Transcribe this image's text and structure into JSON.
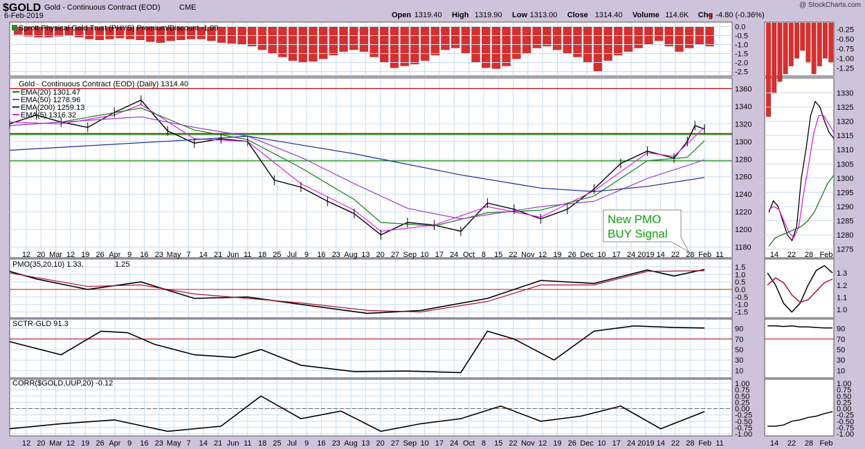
{
  "header": {
    "symbol": "$GOLD",
    "name": "Gold - Continuous Contract (EOD)",
    "exchange": "CME",
    "date": "6-Feb-2019",
    "watermark": "@ StockCharts.com",
    "ohlc": [
      {
        "k": "Open",
        "v": "1319.40"
      },
      {
        "k": "High",
        "v": "1319.90"
      },
      {
        "k": "Low",
        "v": "1313.00"
      },
      {
        "k": "Close",
        "v": "1314.40"
      },
      {
        "k": "Volume",
        "v": "114.6K"
      },
      {
        "k": "Chg",
        "v": "-4.80 (-0.36%)"
      }
    ]
  },
  "colors": {
    "background": "#cfc3dc",
    "panel": "#ffffff",
    "grid": "#c8dcec",
    "bars": "#d43030",
    "price": "#000000",
    "ema20": "#1a7a1a",
    "ema50": "#9a40d0",
    "ema200": "#1a2a9a",
    "ema5": "#e020e0",
    "pmo_signal": "#b01030",
    "hline_red": "#c01818",
    "hline_green": "#189018",
    "annotation": "#10a010"
  },
  "annotation": {
    "line1": "New PMO",
    "line2": "BUY Signal"
  },
  "chart_data": [
    {
      "panel": "premium",
      "type": "bar",
      "title": "Sprott Physical Gold Trust (PHYS) Premium/Discount -1.09",
      "ylim": [
        -2.75,
        0.25
      ],
      "yticks": [
        "0.0",
        "-0.5",
        "-1.0",
        "-1.5",
        "-2.0",
        "-2.5"
      ],
      "yticks_zoom": [
        "-0.25",
        "-0.50",
        "-0.75",
        "-1.00",
        "-1.25"
      ],
      "values": [
        -0.45,
        -0.55,
        -0.6,
        -0.6,
        -0.55,
        -0.5,
        -0.6,
        -0.7,
        -0.75,
        -0.7,
        -0.65,
        -0.7,
        -0.75,
        -0.85,
        -0.9,
        -0.8,
        -0.75,
        -0.7,
        -0.7,
        -0.8,
        -0.9,
        -0.95,
        -1.0,
        -1.1,
        -1.3,
        -1.5,
        -1.7,
        -1.9,
        -2.0,
        -1.95,
        -1.8,
        -1.6,
        -1.4,
        -1.3,
        -1.4,
        -1.7,
        -2.0,
        -2.3,
        -2.2,
        -2.1,
        -1.9,
        -1.6,
        -1.3,
        -1.2,
        -1.5,
        -2.0,
        -2.3,
        -2.35,
        -2.2,
        -1.8,
        -1.5,
        -1.2,
        -1.1,
        -1.3,
        -1.5,
        -1.7,
        -2.0,
        -2.5,
        -1.9,
        -1.6,
        -1.4,
        -1.2,
        -1.0,
        -0.8,
        -1.1,
        -1.4,
        -1.2,
        -1.0,
        -1.1
      ]
    },
    {
      "panel": "price",
      "type": "line",
      "title": "Gold - Continuous Contract (EOD) (Daily) 1314.40",
      "legend": [
        {
          "name": "EMA(20) 1301.47",
          "color": "#1a7a1a"
        },
        {
          "name": "EMA(50) 1278.96",
          "color": "#9a40d0"
        },
        {
          "name": "EMA(200) 1259.13",
          "color": "#1a2a9a"
        },
        {
          "name": "EMA(5) 1316.32",
          "color": "#e020e0"
        }
      ],
      "ylim": [
        1168,
        1372
      ],
      "yticks": [
        1180,
        1200,
        1220,
        1240,
        1260,
        1280,
        1300,
        1320,
        1340,
        1360
      ],
      "zoom_ylim": [
        1272,
        1334
      ],
      "zoom_yticks": [
        1275,
        1280,
        1285,
        1290,
        1295,
        1300,
        1305,
        1310,
        1315,
        1320,
        1325,
        1330
      ],
      "hlines": [
        {
          "y": 1360,
          "color": "#c01818"
        },
        {
          "y": 1309,
          "color": "#c01818"
        },
        {
          "y": 1309,
          "color": "#189018"
        },
        {
          "y": 1278,
          "color": "#189018"
        }
      ],
      "x_start": "2018-02-06",
      "x_end": "2019-02-06",
      "x_labels": [
        "12",
        "20",
        "Mar",
        "12",
        "19",
        "26",
        "Apr",
        "9",
        "16",
        "23",
        "May",
        "7",
        "14",
        "21",
        "Jun",
        "11",
        "18",
        "25",
        "Jul",
        "9",
        "16",
        "23",
        "Aug",
        "13",
        "20",
        "27",
        "Sep",
        "10",
        "17",
        "24",
        "Oct",
        "8",
        "15",
        "22",
        "Nov",
        "12",
        "19",
        "26",
        "Dec",
        "10",
        "17",
        "24",
        "2019",
        "14",
        "22",
        "28",
        "Feb",
        "11"
      ],
      "zoom_x_labels": [
        "14",
        "22",
        "28",
        "Feb"
      ],
      "series": [
        {
          "id": "close",
          "dates": [
            "2018-02-06",
            "2018-02-20",
            "2018-03-05",
            "2018-03-19",
            "2018-04-02",
            "2018-04-16",
            "2018-04-30",
            "2018-05-14",
            "2018-05-28",
            "2018-06-11",
            "2018-06-25",
            "2018-07-09",
            "2018-07-23",
            "2018-08-06",
            "2018-08-20",
            "2018-09-03",
            "2018-09-17",
            "2018-10-01",
            "2018-10-15",
            "2018-10-29",
            "2018-11-12",
            "2018-11-26",
            "2018-12-10",
            "2018-12-24",
            "2019-01-07",
            "2019-01-21",
            "2019-01-28",
            "2019-02-01",
            "2019-02-06"
          ],
          "values": [
            1320,
            1330,
            1322,
            1316,
            1333,
            1347,
            1312,
            1298,
            1303,
            1300,
            1256,
            1248,
            1232,
            1218,
            1194,
            1208,
            1205,
            1198,
            1230,
            1223,
            1212,
            1223,
            1246,
            1275,
            1289,
            1281,
            1300,
            1318,
            1314
          ]
        },
        {
          "id": "ema5",
          "dates": [
            "2018-02-06",
            "2018-03-05",
            "2018-04-02",
            "2018-04-16",
            "2018-05-14",
            "2018-06-11",
            "2018-07-09",
            "2018-08-06",
            "2018-08-20",
            "2018-09-17",
            "2018-10-15",
            "2018-11-12",
            "2018-12-10",
            "2019-01-07",
            "2019-01-21",
            "2019-02-06"
          ],
          "values": [
            1322,
            1320,
            1330,
            1342,
            1303,
            1300,
            1252,
            1222,
            1198,
            1205,
            1226,
            1214,
            1244,
            1287,
            1283,
            1316
          ]
        },
        {
          "id": "ema20",
          "dates": [
            "2018-02-06",
            "2018-03-05",
            "2018-04-16",
            "2018-05-14",
            "2018-06-11",
            "2018-07-09",
            "2018-08-06",
            "2018-08-20",
            "2018-09-17",
            "2018-10-15",
            "2018-11-12",
            "2018-12-10",
            "2019-01-07",
            "2019-01-28",
            "2019-02-06"
          ],
          "values": [
            1318,
            1322,
            1338,
            1313,
            1302,
            1270,
            1234,
            1208,
            1204,
            1219,
            1222,
            1238,
            1278,
            1282,
            1301
          ]
        },
        {
          "id": "ema50",
          "dates": [
            "2018-02-06",
            "2018-04-16",
            "2018-05-14",
            "2018-06-11",
            "2018-07-09",
            "2018-08-06",
            "2018-09-03",
            "2018-10-01",
            "2018-11-12",
            "2018-12-10",
            "2019-01-07",
            "2019-02-06"
          ],
          "values": [
            1318,
            1328,
            1316,
            1306,
            1282,
            1252,
            1224,
            1212,
            1226,
            1232,
            1258,
            1279
          ]
        },
        {
          "id": "ema200",
          "dates": [
            "2018-02-06",
            "2018-05-14",
            "2018-06-11",
            "2018-08-06",
            "2018-10-01",
            "2018-11-12",
            "2018-12-10",
            "2019-01-07",
            "2019-02-06"
          ],
          "values": [
            1290,
            1302,
            1306,
            1286,
            1262,
            1247,
            1243,
            1249,
            1259
          ]
        }
      ]
    },
    {
      "panel": "pmo",
      "type": "line",
      "title": "PMO(35,20,10) 1.33, 1.25",
      "title_parts": {
        "head": "PMO(35,20,10) 1.33,",
        "tail": "1.25"
      },
      "ylim": [
        -1.75,
        1.75
      ],
      "yticks": [
        "1.5",
        "1.0",
        "0.5",
        "0.0",
        "-0.5",
        "-1.0",
        "-1.5"
      ],
      "zoom_yticks": [
        "1.3",
        "1.2",
        "1.1",
        "1.0"
      ],
      "series": [
        {
          "id": "pmo",
          "dates": [
            "2018-02-06",
            "2018-02-20",
            "2018-03-19",
            "2018-04-16",
            "2018-05-14",
            "2018-06-11",
            "2018-07-09",
            "2018-08-13",
            "2018-09-10",
            "2018-10-15",
            "2018-11-12",
            "2018-12-10",
            "2019-01-07",
            "2019-01-21",
            "2019-02-06"
          ],
          "values": [
            1.2,
            0.7,
            0.0,
            0.5,
            -0.6,
            -0.5,
            -1.0,
            -1.6,
            -1.4,
            -0.6,
            0.6,
            0.4,
            1.3,
            0.9,
            1.33
          ]
        },
        {
          "id": "signal",
          "dates": [
            "2018-02-06",
            "2018-03-19",
            "2018-04-16",
            "2018-05-14",
            "2018-06-11",
            "2018-07-09",
            "2018-08-13",
            "2018-09-10",
            "2018-10-15",
            "2018-11-12",
            "2018-12-10",
            "2019-01-07",
            "2019-02-06"
          ],
          "values": [
            1.1,
            0.2,
            0.3,
            -0.3,
            -0.6,
            -0.9,
            -1.4,
            -1.5,
            -0.8,
            0.3,
            0.3,
            1.2,
            1.25
          ]
        }
      ]
    },
    {
      "panel": "sctr",
      "type": "line",
      "title": "SCTR-GLD 91.3",
      "ylim": [
        0,
        100
      ],
      "yticks": [
        "90",
        "70",
        "50",
        "30",
        "10"
      ],
      "hlines": [
        {
          "y": 70,
          "color": "#c01818"
        }
      ],
      "series": [
        {
          "id": "sctr",
          "dates": [
            "2018-02-06",
            "2018-03-05",
            "2018-03-26",
            "2018-04-09",
            "2018-04-23",
            "2018-05-14",
            "2018-06-04",
            "2018-06-18",
            "2018-07-09",
            "2018-08-06",
            "2018-09-03",
            "2018-10-01",
            "2018-10-15",
            "2018-10-29",
            "2018-11-19",
            "2018-12-10",
            "2018-12-31",
            "2019-01-21",
            "2019-02-06"
          ],
          "values": [
            65,
            40,
            85,
            82,
            60,
            40,
            35,
            50,
            20,
            8,
            9,
            6,
            85,
            70,
            30,
            85,
            95,
            92,
            91
          ]
        }
      ]
    },
    {
      "panel": "corr",
      "type": "line",
      "title": "CORR($GOLD,UUP,20) -0.12",
      "ylim": [
        -1.0,
        1.0
      ],
      "yticks": [
        "1.00",
        "0.75",
        "0.50",
        "0.25",
        "0.00",
        "-0.25",
        "-0.50",
        "-0.75",
        "-1.00"
      ],
      "series": [
        {
          "id": "corr",
          "dates": [
            "2018-02-06",
            "2018-03-05",
            "2018-04-02",
            "2018-04-30",
            "2018-05-28",
            "2018-06-18",
            "2018-07-09",
            "2018-07-30",
            "2018-08-20",
            "2018-09-10",
            "2018-10-01",
            "2018-10-22",
            "2018-11-12",
            "2018-12-03",
            "2018-12-24",
            "2019-01-14",
            "2019-02-06"
          ],
          "values": [
            -0.8,
            -0.6,
            -0.45,
            -0.9,
            -0.7,
            0.5,
            -0.4,
            -0.1,
            -0.9,
            -0.6,
            -0.4,
            0.1,
            -0.5,
            -0.3,
            0.1,
            -0.8,
            -0.12
          ]
        }
      ]
    }
  ]
}
